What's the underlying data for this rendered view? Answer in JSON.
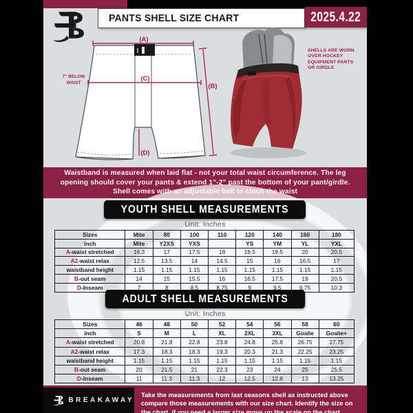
{
  "header": {
    "title": "PANTS SHELL SIZE CHART",
    "date": "2025.4.22"
  },
  "diagram": {
    "label_a": "(A)",
    "label_b": "(B)",
    "label_c": "(C)",
    "label_d": "(D)",
    "waist_note": "7\" BELOW WAIST",
    "photo_note": "SHELLS ARE WORN OVER HOCKEY EQUIPMENT PANTS OR GIRDLE"
  },
  "banner": {
    "text": "Waistband is measured when laid flat - not your total waist circumference. The leg opening should cover your pants & extend 1\"-2\" past the bottom of your pant/girdle. Shell comes with an adjustable belt to cinch the waist"
  },
  "sections": [
    {
      "title": "YOUTH SHELL MEASUREMENTS",
      "unit": "Unit: Inches",
      "rows": [
        {
          "pre": "",
          "label": "Sizes",
          "bold": true,
          "values": [
            "Mite",
            "80",
            "100",
            "110",
            "120",
            "140",
            "160",
            "180"
          ]
        },
        {
          "pre": "",
          "label": "inch",
          "bold": true,
          "values": [
            "Mite",
            "Y2XS",
            "YXS",
            "",
            "YS",
            "YM",
            "YL",
            "YXL"
          ]
        },
        {
          "pre": "A",
          "label": "-waist stretched",
          "bold": false,
          "values": [
            "16.3",
            "17",
            "17.5",
            "18",
            "18.5",
            "19.5",
            "20",
            "20.5"
          ]
        },
        {
          "pre": "A2",
          "label": "-waist relax",
          "bold": false,
          "values": [
            "12.5",
            "13.5",
            "14",
            "14.5",
            "15",
            "16",
            "16.5",
            "17"
          ]
        },
        {
          "pre": "",
          "label": "waistband height",
          "bold": false,
          "values": [
            "1.15",
            "1.15",
            "1.15",
            "1.15",
            "1.15",
            "1.15",
            "1.15",
            "1.15"
          ]
        },
        {
          "pre": "B",
          "label": "-out seam",
          "bold": false,
          "values": [
            "14",
            "15",
            "15.5",
            "16",
            "16.5",
            "17.5",
            "19",
            "20.5"
          ]
        },
        {
          "pre": "D",
          "label": "-Inseam",
          "bold": false,
          "values": [
            "7",
            "8",
            "8.5",
            "8.75",
            "9",
            "9.5",
            "9.75",
            "10.3"
          ]
        }
      ]
    },
    {
      "title": "ADULT SHELL MEASUREMENTS",
      "unit": "Unit: Inches",
      "rows": [
        {
          "pre": "",
          "label": "Sizes",
          "bold": true,
          "values": [
            "46",
            "48",
            "50",
            "52",
            "54",
            "56",
            "58",
            "60"
          ]
        },
        {
          "pre": "",
          "label": "inch",
          "bold": true,
          "values": [
            "S",
            "M",
            "L",
            "XL",
            "2XL",
            "3XL",
            "Goalie",
            "Goalie+"
          ]
        },
        {
          "pre": "A",
          "label": "-waist stretched",
          "bold": false,
          "values": [
            "20.8",
            "21.8",
            "22.8",
            "23.8",
            "24.8",
            "25.8",
            "26.75",
            "27.75"
          ]
        },
        {
          "pre": "A2",
          "label": "-waist relax",
          "bold": false,
          "values": [
            "17.3",
            "18.3",
            "18.3",
            "19.3",
            "20.3",
            "21.3",
            "22.25",
            "23.25"
          ]
        },
        {
          "pre": "",
          "label": "waistband height",
          "bold": false,
          "values": [
            "1.15",
            "1.15",
            "1.15",
            "1.15",
            "1.15",
            "1.15",
            "1.15",
            "1.15"
          ]
        },
        {
          "pre": "B",
          "label": "-out seam",
          "bold": false,
          "values": [
            "20",
            "21.5",
            "21",
            "22.3",
            "23",
            "24",
            "25",
            "25.5"
          ]
        },
        {
          "pre": "D",
          "label": "-Inseam",
          "bold": false,
          "values": [
            "11",
            "11.3",
            "11.3",
            "12",
            "12.5",
            "12.8",
            "13",
            "13.25"
          ]
        }
      ]
    }
  ],
  "footer": {
    "brand": "BREAKAWAY",
    "note": "Take the measurements from last seasons shell as instructed above compare those measurements with our size chart. Identify the size on the chart, if you need a larger size move up the scale on the chart"
  },
  "colors": {
    "maroon": "#8b2144",
    "background_gray": "#dcdde1",
    "frame_black": "#000000",
    "shell_red": "#a02d33",
    "unit_text_gray": "#55565a"
  }
}
